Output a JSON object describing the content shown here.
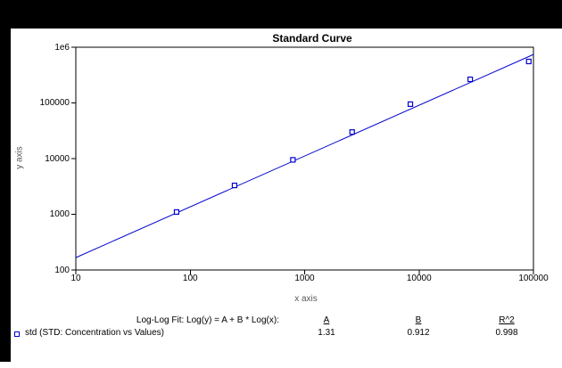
{
  "colors": {
    "background": "#000000",
    "canvas": "#ffffff",
    "axis": "#000000",
    "series_blue": "#0000cd",
    "axis_title_gray": "#595959"
  },
  "chart_data": {
    "type": "scatter",
    "title": "Standard Curve",
    "xlabel": "x axis",
    "ylabel": "y axis",
    "x_scale": "log",
    "y_scale": "log",
    "xlim": [
      10,
      100000
    ],
    "ylim": [
      100,
      1000000
    ],
    "grid": false,
    "x_tick_labels": [
      "10",
      "100",
      "1000",
      "10000",
      "100000"
    ],
    "x_tick_values": [
      10,
      100,
      1000,
      10000,
      100000
    ],
    "y_tick_labels": [
      "100",
      "1000",
      "10000",
      "100000",
      "1e6"
    ],
    "y_tick_values": [
      100,
      1000,
      10000,
      100000,
      1000000
    ],
    "series": [
      {
        "name": "std (STD: Concentration vs Values)",
        "marker": "open-square",
        "color": "#0000cd",
        "x": [
          76,
          244,
          790,
          2600,
          8400,
          28000,
          91000
        ],
        "y": [
          1100,
          3300,
          9500,
          30000,
          95000,
          265000,
          555000
        ]
      }
    ],
    "fit_line": {
      "model": "Log(y) = A + B * Log(x)",
      "A": 1.31,
      "B": 0.912,
      "R2": 0.998
    }
  },
  "annotation": {
    "fit_label": "Log-Log Fit: Log(y) = A + B * Log(x):",
    "columns": {
      "a": "A",
      "b": "B",
      "r2": "R^2"
    },
    "series_label": "std (STD: Concentration vs Values)",
    "values": {
      "a": "1.31",
      "b": "0.912",
      "r2": "0.998"
    }
  }
}
